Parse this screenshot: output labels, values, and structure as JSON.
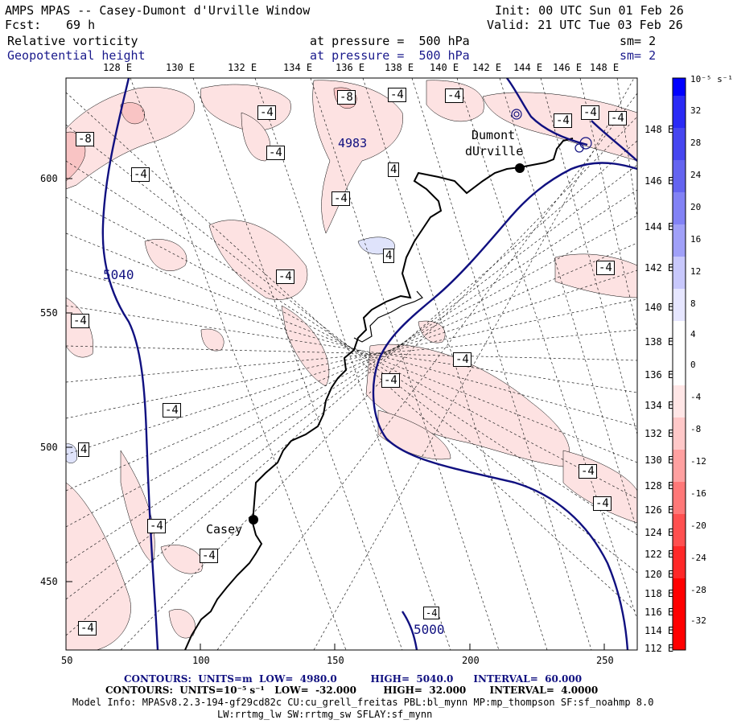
{
  "header": {
    "title": "AMPS MPAS -- Casey-Dumont d'Urville Window",
    "fcst_label": "Fcst:",
    "fcst_value": "69 h",
    "init": "Init: 00 UTC Sun 01 Feb 26",
    "valid": "Valid: 21 UTC Tue 03 Feb 26",
    "field1": {
      "name": "Relative vorticity",
      "pressure": "at pressure =  500 hPa",
      "sm": "sm= 2"
    },
    "field2": {
      "name": "Geopotential height",
      "pressure": "at pressure =  500 hPa",
      "sm": "sm= 2"
    }
  },
  "map": {
    "top_lon_labels": [
      "128 E",
      "130 E",
      "132 E",
      "134 E",
      "136 E",
      "138 E",
      "140 E",
      "142 E",
      "144 E",
      "146 E",
      "148 E"
    ],
    "right_lon_labels": [
      "148 E",
      "146 E",
      "144 E",
      "142 E",
      "140 E",
      "138 E",
      "136 E",
      "134 E",
      "132 E",
      "130 E",
      "128 E",
      "126 E",
      "124 E",
      "122 E",
      "120 E",
      "118 E",
      "116 E",
      "114 E",
      "112 E"
    ],
    "x_ticks": [
      "50",
      "100",
      "150",
      "200",
      "250"
    ],
    "y_ticks": [
      "600",
      "550",
      "500",
      "450"
    ],
    "stations": [
      {
        "name": "Casey"
      },
      {
        "name": "Dumont"
      },
      {
        "name": "dUrville"
      }
    ],
    "height_labels": [
      "5040",
      "4983",
      "5000"
    ],
    "vort_labels": [
      "-4",
      "-8",
      "-4",
      "-4",
      "-8",
      "-4",
      "-4",
      "-4",
      "-4",
      "-4",
      "-4",
      "-4",
      "-4",
      "-4",
      "-4",
      "-4",
      "4",
      "4",
      "4",
      "-4",
      "-4",
      "-4",
      "-4",
      "-4",
      "-4",
      "-4"
    ],
    "colorbar": {
      "unit": "10⁻⁵ s⁻¹",
      "labels": [
        "32",
        "28",
        "24",
        "20",
        "16",
        "12",
        "8",
        "4",
        "0",
        "-4",
        "-8",
        "-12",
        "-16",
        "-20",
        "-24",
        "-28",
        "-32"
      ],
      "colors": [
        "#0000ff",
        "#2828f5",
        "#4646f0",
        "#6464f0",
        "#8282f5",
        "#a0a0f8",
        "#c8c8fc",
        "#e6e6ff",
        "#ffffff",
        "#ffffff",
        "#ffe6e6",
        "#ffc8c8",
        "#ffa0a0",
        "#ff7878",
        "#ff5050",
        "#ff2828",
        "#ff0000"
      ]
    }
  },
  "footer": {
    "line1": "CONTOURS:  UNITS=m  LOW=  4980.0          HIGH=  5040.0      INTERVAL=  60.000",
    "line2": "CONTOURS:  UNITS=10⁻⁵ s⁻¹   LOW=  -32.000        HIGH=  32.000       INTERVAL=  4.0000",
    "line3": "Model Info: MPASv8.2.3-194-gf29cd82c CU:cu_grell_freitas PBL:bl_mynn MP:mp_thompson SF:sf_noahmp 8.0",
    "line4": "LW:rrtmg_lw SW:rrtmg_sw SFLAY:sf_mynn"
  }
}
